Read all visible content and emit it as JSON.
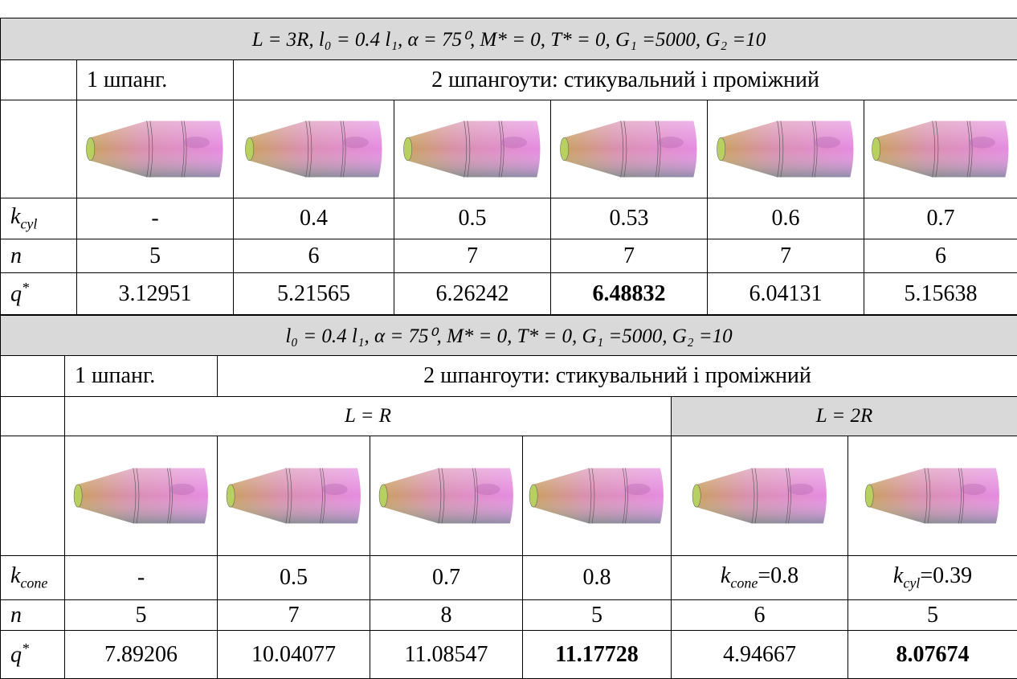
{
  "table1": {
    "header": "L = 3R,  l₀ = 0.4 l₁,  α = 75⁰, M* = 0, T* = 0, G₁ =5000, G₂ =10",
    "group_row": [
      "1 шпанг.",
      "2 шпангоути: стикувальний і проміжний"
    ],
    "rows": [
      {
        "label": {
          "symbol": "k",
          "sub": "cyl"
        },
        "cells": [
          "-",
          "0.4",
          "0.5",
          "0.53",
          "0.6",
          "0.7"
        ]
      },
      {
        "label": {
          "symbol": "n"
        },
        "cells": [
          "5",
          "6",
          "7",
          "7",
          "7",
          "6"
        ]
      },
      {
        "label": {
          "symbol": "q",
          "sup": "*"
        },
        "cells": [
          "3.12951",
          "5.21565",
          "6.26242",
          "6.48832",
          "6.04131",
          "5.15638"
        ]
      }
    ]
  },
  "table2": {
    "header": "l₀ = 0.4 l₁,  α = 75⁰, M* = 0, T* = 0, G₁ =5000, G₂ =10",
    "group_row": [
      "1 шпанг.",
      "2 шпангоути: стикувальний і проміжний"
    ],
    "length_row": [
      "L = R",
      "L = 2R"
    ],
    "rows": [
      {
        "label": {
          "symbol": "k",
          "sub": "cone"
        },
        "cells": [
          "-",
          "0.5",
          "0.7",
          "0.8",
          {
            "symbol": "k",
            "sub": "cone",
            "text": "=0.8"
          },
          {
            "symbol": "k",
            "sub": "cyl",
            "text": "=0.39"
          }
        ]
      },
      {
        "label": {
          "symbol": "n"
        },
        "cells": [
          "5",
          "7",
          "8",
          "5",
          "6",
          "5"
        ]
      },
      {
        "label": {
          "symbol": "q",
          "sup": "*"
        },
        "cells": [
          "7.89206",
          "10.04077",
          "11.08547",
          "11.17728",
          "4.94667",
          "8.07674"
        ]
      }
    ]
  }
}
